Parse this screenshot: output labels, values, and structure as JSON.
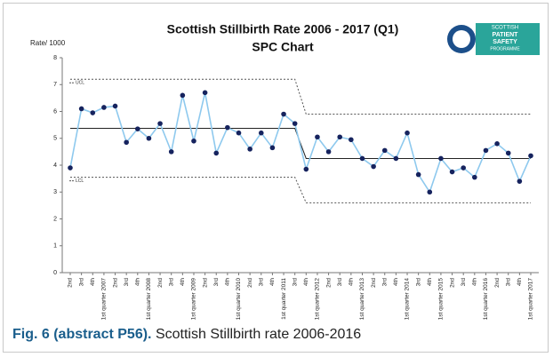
{
  "chart_data": {
    "type": "line",
    "title": "Scottish Stillbirth Rate 2006 - 2017 (Q1)",
    "subtitle": "SPC Chart",
    "y_label": "Rate/ 1000",
    "logo_text": [
      "SCOTTISH",
      "PATIENT",
      "SAFETY",
      "PROGRAMME"
    ],
    "categories": [
      "2nd",
      "3rd",
      "4th",
      "1st quarter 2007",
      "2nd",
      "3rd",
      "4th",
      "1st quarter 2008",
      "2nd",
      "3rd",
      "4th",
      "1st quarter 2009",
      "2nd",
      "3rd",
      "4th",
      "1st quarter 2010",
      "2nd",
      "3rd",
      "4th",
      "1st quarter 2011",
      "3rd",
      "4th",
      "1st quarter 2012",
      "2nd",
      "3rd",
      "4th",
      "1st quarter 2013",
      "2nd",
      "3rd",
      "4th",
      "1st quarter 2014",
      "3rd",
      "4th",
      "1st quarter 2015",
      "2nd",
      "3rd",
      "4th",
      "1st quarter 2016",
      "2nd",
      "3rd",
      "4th",
      "1st quarter 2017"
    ],
    "series": [
      {
        "color": "#8ec9ee",
        "marker_color": "#16235e",
        "markers": true,
        "values": [
          3.9,
          6.1,
          5.95,
          6.15,
          6.2,
          4.85,
          5.35,
          5.0,
          5.55,
          4.5,
          6.6,
          4.9,
          6.7,
          4.45,
          5.4,
          5.2,
          4.6,
          5.2,
          4.65,
          5.9,
          5.55,
          3.85,
          5.05,
          4.5,
          5.05,
          4.95,
          4.25,
          3.95,
          4.55,
          4.25,
          5.2,
          3.65,
          3.0,
          4.25,
          3.75,
          3.9,
          3.55,
          4.55,
          4.8,
          4.45,
          3.4,
          4.35
        ]
      },
      {
        "color": "#222222",
        "values": [
          5.37,
          5.37,
          5.37,
          5.37,
          5.37,
          5.37,
          5.37,
          5.37,
          5.37,
          5.37,
          5.37,
          5.37,
          5.37,
          5.37,
          5.37,
          5.37,
          5.37,
          5.37,
          5.37,
          5.37,
          5.37,
          4.25,
          4.25,
          4.25,
          4.25,
          4.25,
          4.25,
          4.25,
          4.25,
          4.25,
          4.25,
          4.25,
          4.25,
          4.25,
          4.25,
          4.25,
          4.25,
          4.25,
          4.25,
          4.25,
          4.25,
          4.25
        ]
      },
      {
        "name": "UCL",
        "color": "#555555",
        "dashed": true,
        "values": [
          7.2,
          7.2,
          7.2,
          7.2,
          7.2,
          7.2,
          7.2,
          7.2,
          7.2,
          7.2,
          7.2,
          7.2,
          7.2,
          7.2,
          7.2,
          7.2,
          7.2,
          7.2,
          7.2,
          7.2,
          7.2,
          5.9,
          5.9,
          5.9,
          5.9,
          5.9,
          5.9,
          5.9,
          5.9,
          5.9,
          5.9,
          5.9,
          5.9,
          5.9,
          5.9,
          5.9,
          5.9,
          5.9,
          5.9,
          5.9,
          5.9,
          5.9
        ]
      },
      {
        "name": "LCL",
        "color": "#555555",
        "dashed": true,
        "values": [
          3.55,
          3.55,
          3.55,
          3.55,
          3.55,
          3.55,
          3.55,
          3.55,
          3.55,
          3.55,
          3.55,
          3.55,
          3.55,
          3.55,
          3.55,
          3.55,
          3.55,
          3.55,
          3.55,
          3.55,
          3.55,
          2.6,
          2.6,
          2.6,
          2.6,
          2.6,
          2.6,
          2.6,
          2.6,
          2.6,
          2.6,
          2.6,
          2.6,
          2.6,
          2.6,
          2.6,
          2.6,
          2.6,
          2.6,
          2.6,
          2.6,
          2.6
        ]
      }
    ],
    "ylim": [
      0,
      8
    ],
    "yticks": [
      0,
      1,
      2,
      3,
      4,
      5,
      6,
      7,
      8
    ],
    "grid": false
  },
  "caption": {
    "label": "Fig. 6 (abstract P56).",
    "text": "Scottish Stillbirth rate 2006-2016"
  }
}
